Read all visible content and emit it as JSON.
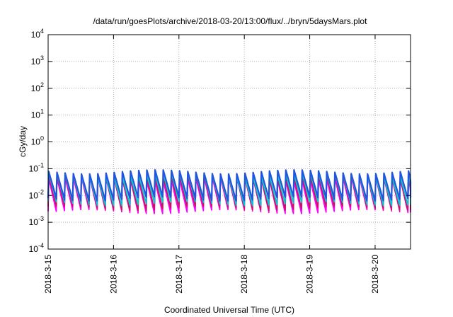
{
  "chart_data": {
    "type": "line",
    "title": "/data/run/goesPlots/archive/2018-03-20/13:00/flux/../bryn/5daysMars.plot",
    "xlabel": "Coordinated Universal Time (UTC)",
    "ylabel": "cGy/day",
    "yscale": "log",
    "ylim": [
      0.0001,
      10000
    ],
    "y_ticks": [
      {
        "base": "10",
        "exp": "-4",
        "value": 0.0001
      },
      {
        "base": "10",
        "exp": "-3",
        "value": 0.001
      },
      {
        "base": "10",
        "exp": "-2",
        "value": 0.01
      },
      {
        "base": "10",
        "exp": "-1",
        "value": 0.1
      },
      {
        "base": "10",
        "exp": "0",
        "value": 1
      },
      {
        "base": "10",
        "exp": "1",
        "value": 10
      },
      {
        "base": "10",
        "exp": "2",
        "value": 100
      },
      {
        "base": "10",
        "exp": "3",
        "value": 1000
      },
      {
        "base": "10",
        "exp": "4",
        "value": 10000
      }
    ],
    "xlim": [
      "2018-03-15T00:00",
      "2018-03-20T13:00"
    ],
    "x_ticks": [
      "2018-3-15",
      "2018-3-16",
      "2018-3-17",
      "2018-3-18",
      "2018-3-19",
      "2018-3-20"
    ],
    "grid": true,
    "cycles_per_day": 8,
    "series": [
      {
        "color": "#ff00ff",
        "peak": 0.05,
        "trough": 0.003
      },
      {
        "color": "#cc1166",
        "peak": 0.06,
        "trough": 0.004
      },
      {
        "color": "#00cccc",
        "peak": 0.07,
        "trough": 0.006
      },
      {
        "color": "#2255dd",
        "peak": 0.09,
        "trough": 0.009
      }
    ]
  }
}
